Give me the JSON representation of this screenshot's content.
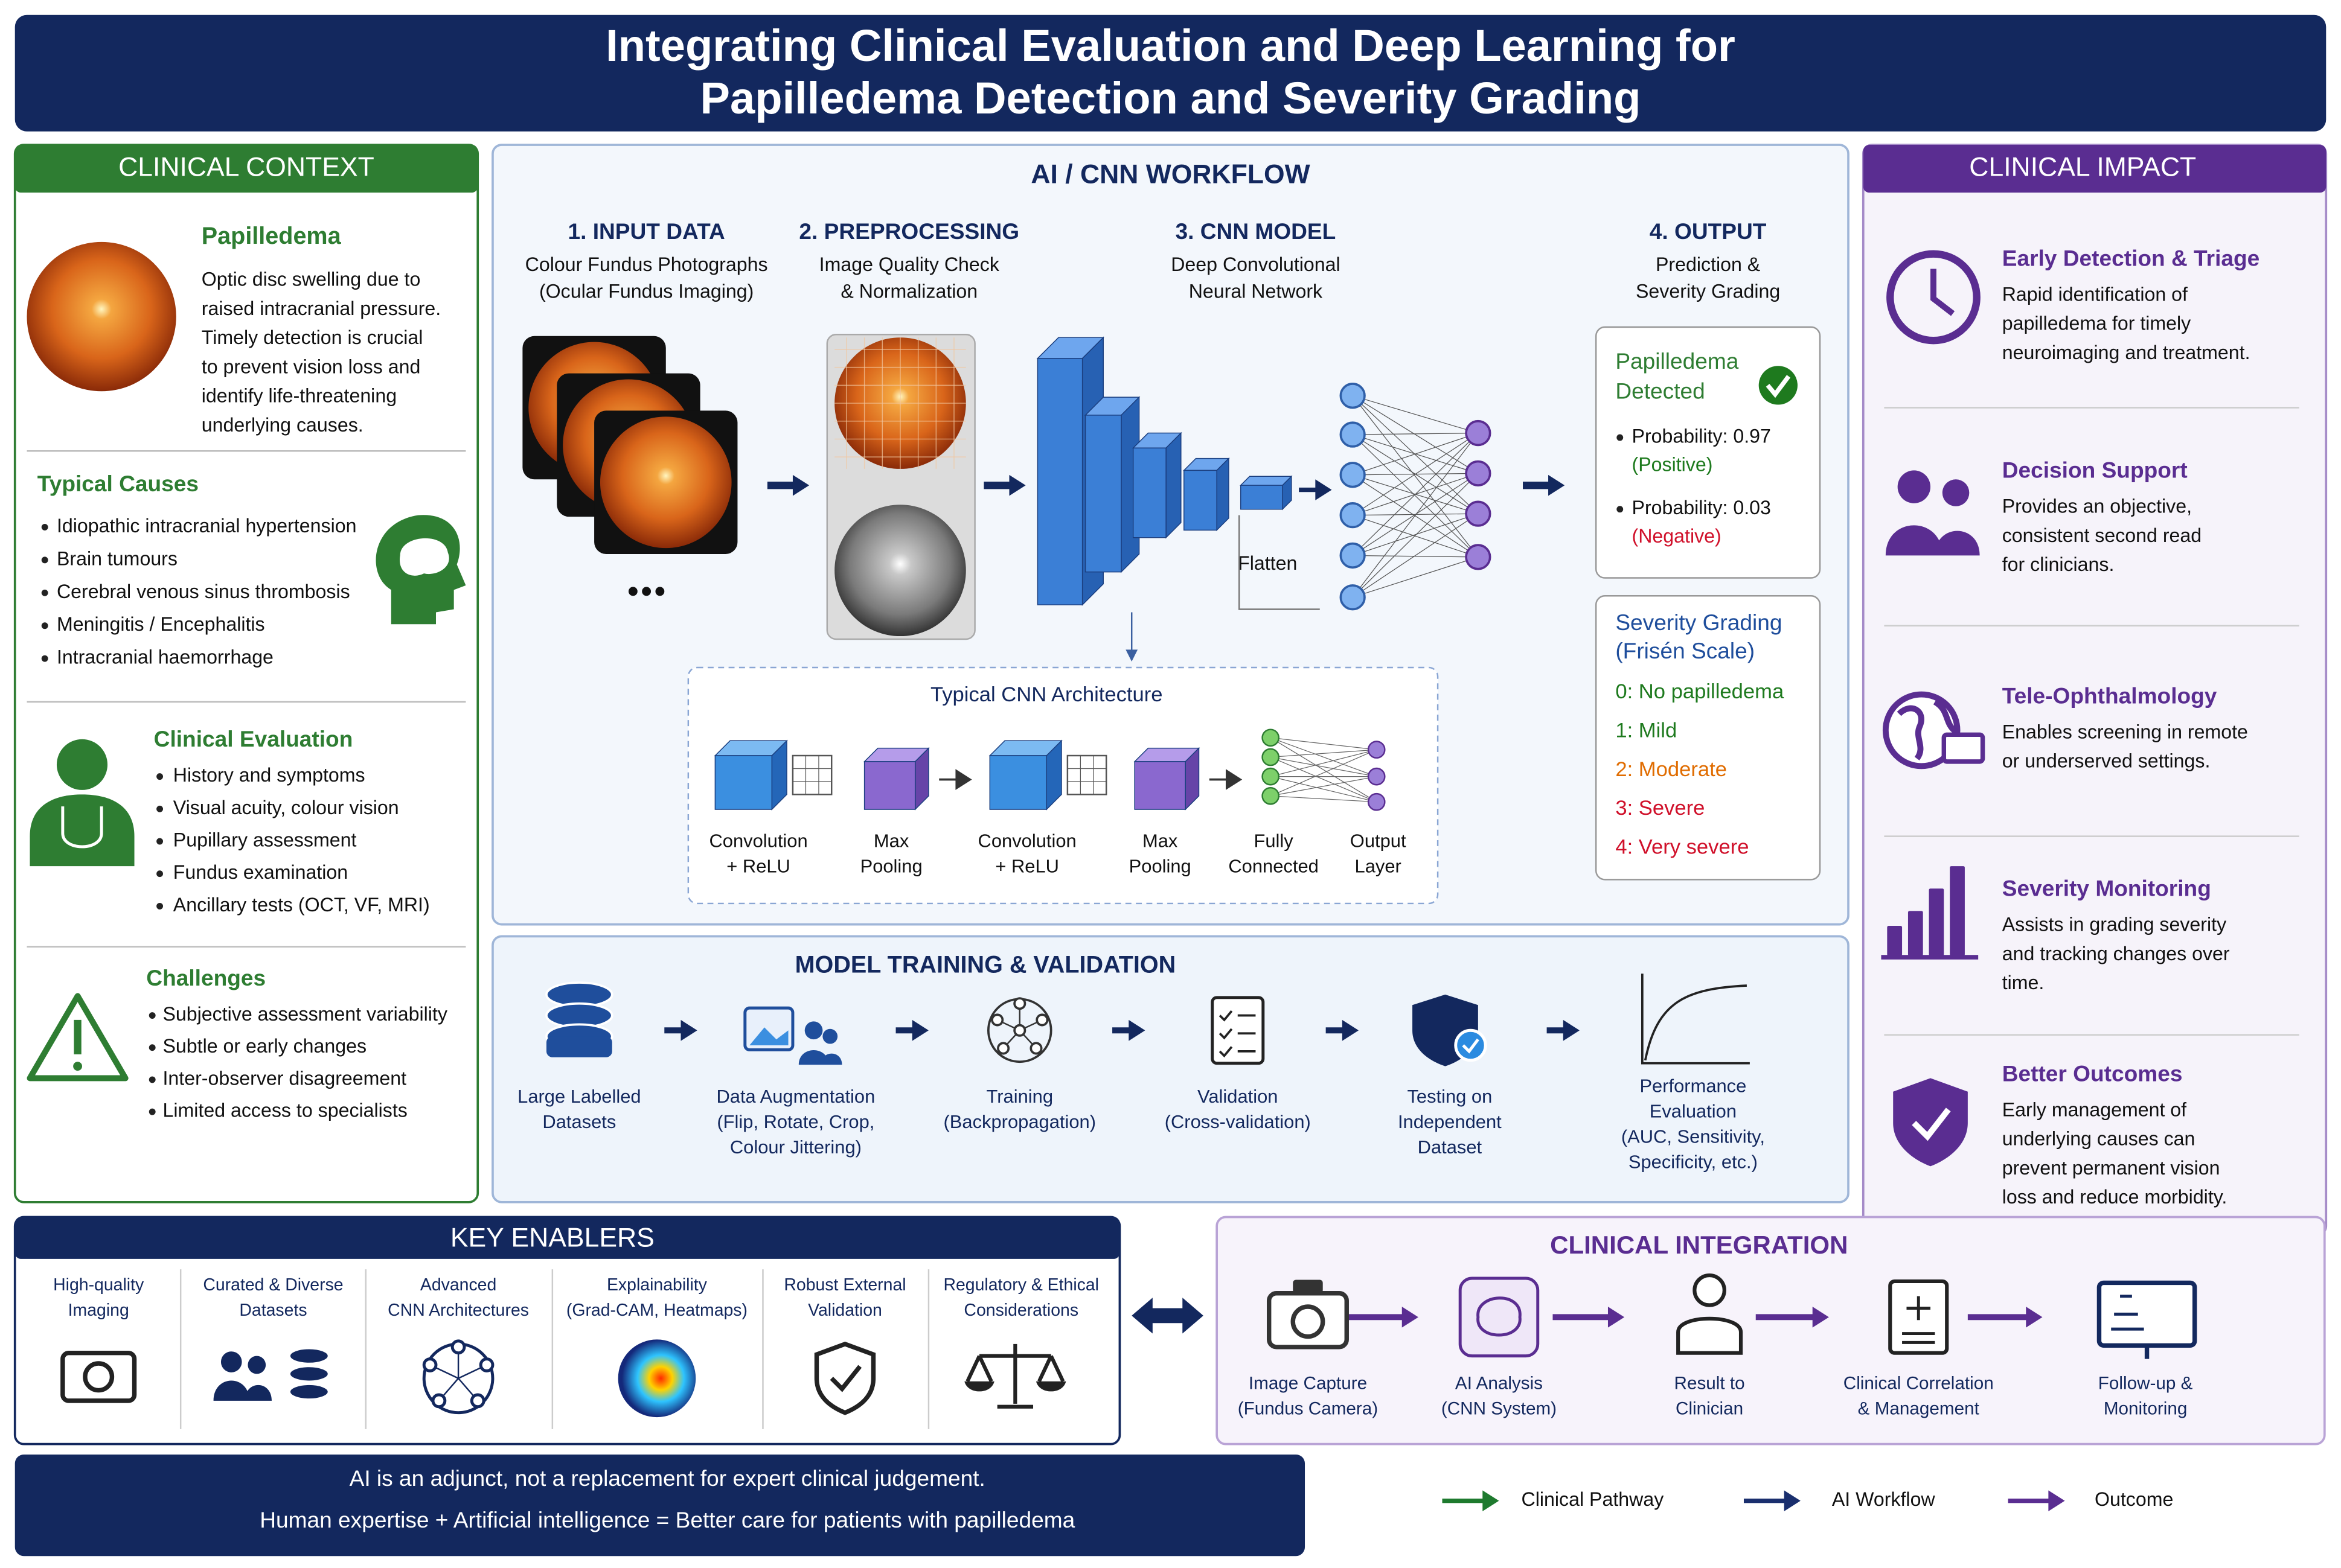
{
  "title": [
    "Integrating Clinical Evaluation and Deep Learning for",
    "Papilledema Detection and Severity Grading"
  ],
  "clinical_context": {
    "heading": "CLINICAL CONTEXT",
    "papilledema": {
      "title": "Papilledema",
      "lines": [
        "Optic disc swelling due to",
        "raised intracranial pressure.",
        "Timely detection is crucial",
        "to prevent vision loss and",
        "identify life-threatening",
        "underlying causes."
      ]
    },
    "typical_causes": {
      "title": "Typical Causes",
      "items": [
        "Idiopathic intracranial hypertension",
        "Brain tumours",
        "Cerebral venous sinus thrombosis",
        "Meningitis / Encephalitis",
        "Intracranial haemorrhage"
      ]
    },
    "clinical_evaluation": {
      "title": "Clinical Evaluation",
      "items": [
        "History and symptoms",
        "Visual acuity, colour vision",
        "Pupillary assessment",
        "Fundus examination",
        "Ancillary tests (OCT, VF, MRI)"
      ]
    },
    "challenges": {
      "title": "Challenges",
      "items": [
        "Subjective assessment variability",
        "Subtle or early changes",
        "Inter-observer disagreement",
        "Limited access to specialists"
      ]
    }
  },
  "workflow": {
    "heading": "AI / CNN WORKFLOW",
    "steps": [
      {
        "title": "1. INPUT DATA",
        "lines": [
          "Colour Fundus Photographs",
          "(Ocular Fundus Imaging)"
        ]
      },
      {
        "title": "2. PREPROCESSING",
        "lines": [
          "Image Quality Check",
          "& Normalization"
        ]
      },
      {
        "title": "3. CNN MODEL",
        "lines": [
          "Deep Convolutional",
          "Neural Network"
        ]
      },
      {
        "title": "4. OUTPUT",
        "lines": [
          "Prediction &",
          "Severity Grading"
        ]
      }
    ],
    "flatten": "Flatten",
    "output": {
      "title": [
        "Papilledema",
        "Detected"
      ],
      "items": [
        {
          "label": "Probability: 0.97",
          "sub": "(Positive)",
          "color": "#1e7a1e"
        },
        {
          "label": "Probability: 0.03",
          "sub": "(Negative)",
          "color": "#d0102a"
        }
      ]
    },
    "severity": {
      "title": [
        "Severity Grading",
        "(Frisén Scale)"
      ],
      "grades": [
        {
          "text": "0: No papilledema",
          "color": "#1e7a1e"
        },
        {
          "text": "1: Mild",
          "color": "#1e7a1e"
        },
        {
          "text": "2: Moderate",
          "color": "#e06c00"
        },
        {
          "text": "3: Severe",
          "color": "#d0102a"
        },
        {
          "text": "4: Very severe",
          "color": "#d0102a"
        }
      ]
    },
    "architecture": {
      "title": "Typical CNN Architecture",
      "layers": [
        [
          "Convolution",
          "+ ReLU"
        ],
        [
          "Max",
          "Pooling"
        ],
        [
          "Convolution",
          "+ ReLU"
        ],
        [
          "Max",
          "Pooling"
        ],
        [
          "Fully",
          "Connected"
        ],
        [
          "Output",
          "Layer"
        ]
      ]
    }
  },
  "training": {
    "heading": "MODEL TRAINING & VALIDATION",
    "steps": [
      [
        "Large Labelled",
        "Datasets"
      ],
      [
        "Data Augmentation",
        "(Flip, Rotate, Crop,",
        "Colour Jittering)"
      ],
      [
        "Training",
        "(Backpropagation)"
      ],
      [
        "Validation",
        "(Cross-validation)"
      ],
      [
        "Testing on",
        "Independent",
        "Dataset"
      ],
      [
        "Performance",
        "Evaluation",
        "(AUC, Sensitivity,",
        "Specificity, etc.)"
      ]
    ]
  },
  "impact": {
    "heading": "CLINICAL IMPACT",
    "items": [
      {
        "title": "Early Detection & Triage",
        "lines": [
          "Rapid identification of",
          "papilledema for timely",
          "neuroimaging and treatment."
        ]
      },
      {
        "title": "Decision Support",
        "lines": [
          "Provides an objective,",
          "consistent second read",
          "for clinicians."
        ]
      },
      {
        "title": "Tele-Ophthalmology",
        "lines": [
          "Enables screening in remote",
          "or underserved settings."
        ]
      },
      {
        "title": "Severity Monitoring",
        "lines": [
          "Assists in grading severity",
          "and tracking changes over",
          "time."
        ]
      },
      {
        "title": "Better Outcomes",
        "lines": [
          "Early management of",
          "underlying causes can",
          "prevent permanent vision",
          "loss and reduce morbidity."
        ]
      }
    ]
  },
  "enablers": {
    "heading": "KEY ENABLERS",
    "items": [
      [
        "High-quality",
        "Imaging"
      ],
      [
        "Curated & Diverse",
        "Datasets"
      ],
      [
        "Advanced",
        "CNN Architectures"
      ],
      [
        "Explainability",
        "(Grad-CAM, Heatmaps)"
      ],
      [
        "Robust External",
        "Validation"
      ],
      [
        "Regulatory & Ethical",
        "Considerations"
      ]
    ]
  },
  "integration": {
    "heading": "CLINICAL INTEGRATION",
    "steps": [
      [
        "Image Capture",
        "(Fundus Camera)"
      ],
      [
        "AI Analysis",
        "(CNN System)"
      ],
      [
        "Result to",
        "Clinician"
      ],
      [
        "Clinical Correlation",
        "& Management"
      ],
      [
        "Follow-up &",
        "Monitoring"
      ]
    ]
  },
  "footer": [
    "AI is an adjunct, not a replacement for expert clinical judgement.",
    "Human expertise + Artificial intelligence  =  Better care for patients with papilledema"
  ],
  "legend": [
    {
      "label": "Clinical Pathway",
      "color": "#1e7a2e"
    },
    {
      "label": "AI Workflow",
      "color": "#1a2f6e"
    },
    {
      "label": "Outcome",
      "color": "#5a2d91"
    }
  ]
}
